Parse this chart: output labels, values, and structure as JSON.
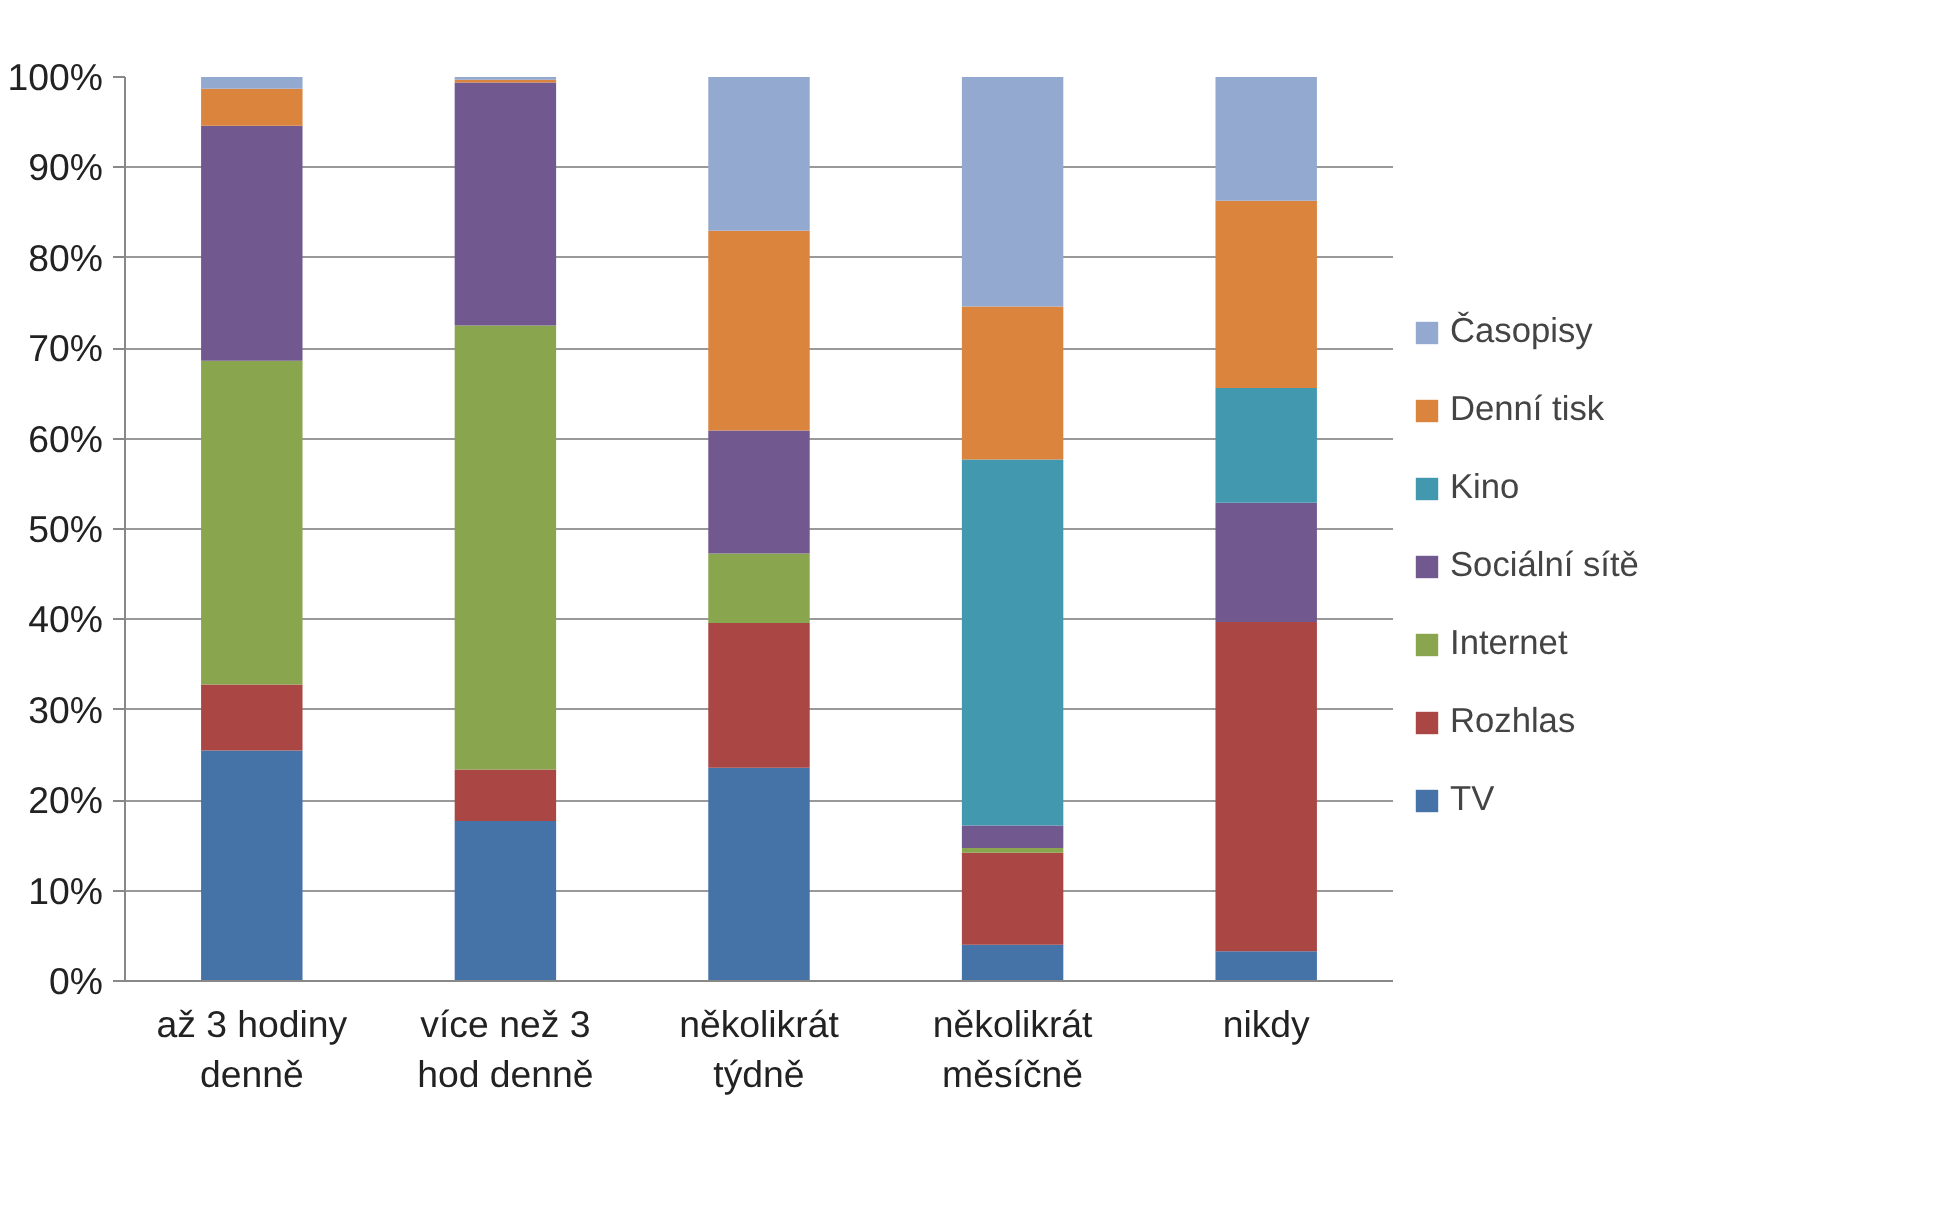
{
  "chart_data": {
    "type": "bar",
    "stacked": true,
    "categories": [
      "až 3 hodiny\ndenně",
      "více než 3\nhod denně",
      "několikrát\ntýdně",
      "několikrát\nměsíčně",
      "nikdy"
    ],
    "series": [
      {
        "name": "TV",
        "color": "#4572a7",
        "values": [
          25.5,
          17.7,
          23.6,
          4.0,
          3.3
        ]
      },
      {
        "name": "Rozhlas",
        "color": "#aa4643",
        "values": [
          7.3,
          5.7,
          16.0,
          10.2,
          36.4
        ]
      },
      {
        "name": "Internet",
        "color": "#89a54e",
        "values": [
          35.8,
          49.1,
          7.7,
          0.5,
          0
        ]
      },
      {
        "name": "Sociální sítě",
        "color": "#71588f",
        "values": [
          26.0,
          26.9,
          13.6,
          2.5,
          13.2
        ]
      },
      {
        "name": "Kino",
        "color": "#4198af",
        "values": [
          0,
          0,
          0,
          40.5,
          12.7
        ]
      },
      {
        "name": "Denní tisk",
        "color": "#db843d",
        "values": [
          4.1,
          0.3,
          22.1,
          16.9,
          20.7
        ]
      },
      {
        "name": "Časopisy",
        "color": "#93a9cf",
        "values": [
          1.3,
          0.3,
          17.0,
          25.4,
          13.7
        ]
      }
    ],
    "ylim": [
      0,
      100
    ],
    "yticks": [
      {
        "value": 0,
        "label": "0%"
      },
      {
        "value": 10,
        "label": "10%"
      },
      {
        "value": 20,
        "label": "20%"
      },
      {
        "value": 30,
        "label": "30%"
      },
      {
        "value": 40,
        "label": "40%"
      },
      {
        "value": 50,
        "label": "50%"
      },
      {
        "value": 60,
        "label": "60%"
      },
      {
        "value": 70,
        "label": "70%"
      },
      {
        "value": 80,
        "label": "80%"
      },
      {
        "value": 90,
        "label": "90%"
      },
      {
        "value": 100,
        "label": "100%"
      }
    ],
    "grid": "y",
    "legend": "right"
  }
}
